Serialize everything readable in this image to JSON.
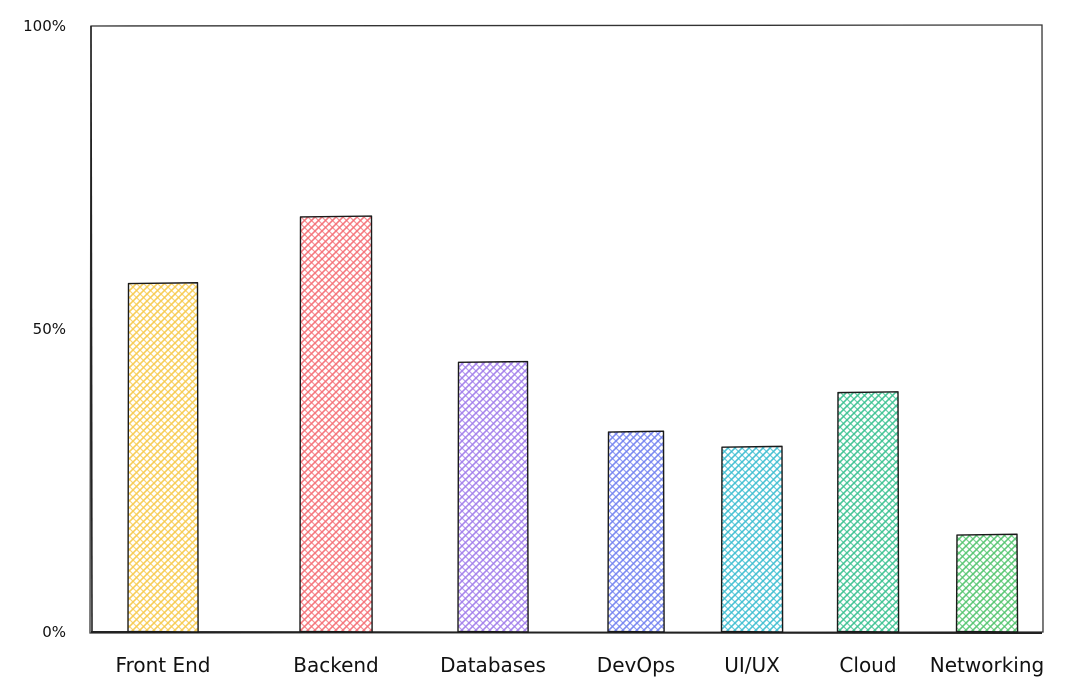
{
  "chart_data": {
    "type": "bar",
    "categories": [
      "Front End",
      "Backend",
      "Databases",
      "DevOps",
      "UI/UX",
      "Cloud",
      "Networking"
    ],
    "values": [
      57.5,
      68.5,
      44.5,
      33,
      30.5,
      39.5,
      16
    ],
    "colors": [
      "#f7c948",
      "#f46b72",
      "#9f7aea",
      "#6f7ff0",
      "#38bcd0",
      "#35c08e",
      "#4fc36a"
    ],
    "ylim": [
      0,
      100
    ],
    "y_ticks": [
      "0%",
      "50%",
      "100%"
    ],
    "y_tick_values": [
      0,
      50,
      100
    ],
    "grid": false,
    "title": "",
    "xlabel": "",
    "ylabel": ""
  }
}
